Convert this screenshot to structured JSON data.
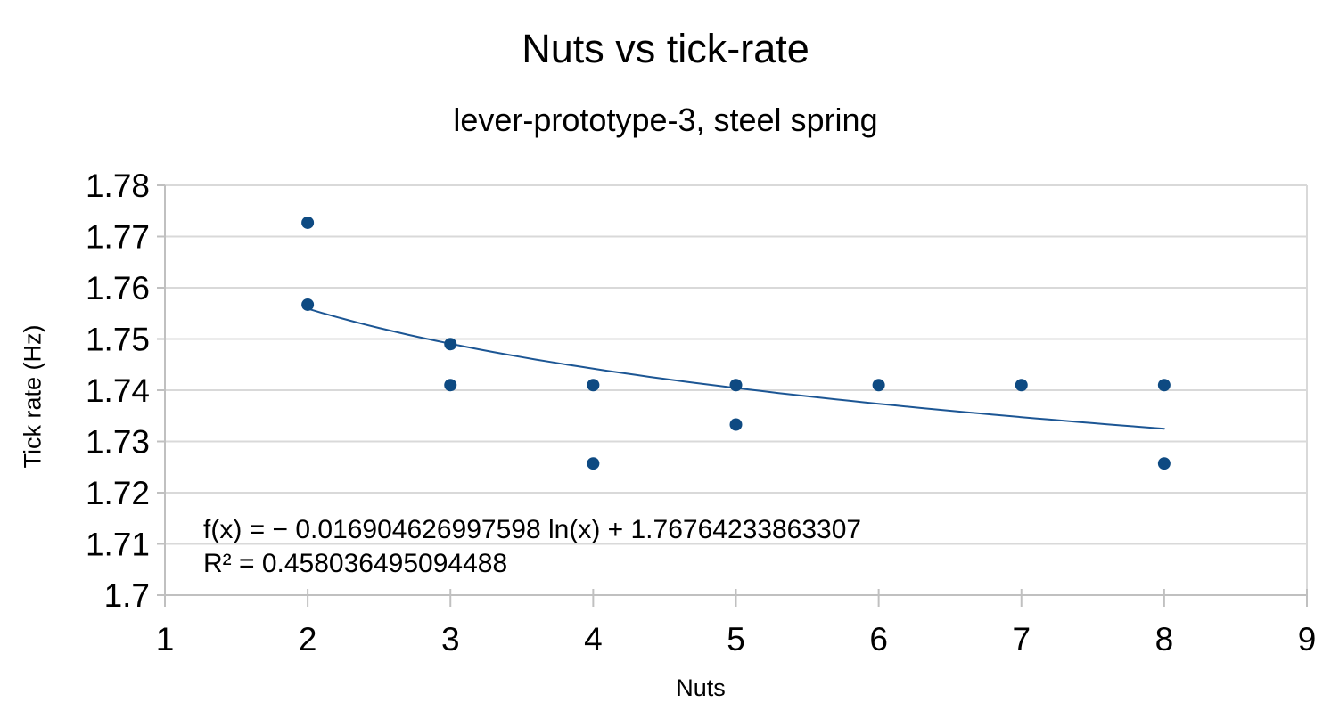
{
  "chart_data": {
    "type": "scatter",
    "title": "Nuts vs tick-rate",
    "subtitle": "lever-prototype-3, steel spring",
    "xlabel": "Nuts",
    "ylabel": "Tick rate (Hz)",
    "xlim": [
      1,
      9
    ],
    "ylim": [
      1.7,
      1.78
    ],
    "x_ticks": [
      1,
      2,
      3,
      4,
      5,
      6,
      7,
      8,
      9
    ],
    "y_ticks": [
      1.7,
      1.71,
      1.72,
      1.73,
      1.74,
      1.75,
      1.76,
      1.77,
      1.78
    ],
    "grid": "horizontal",
    "legend_position": "none",
    "points": [
      {
        "x": 2,
        "y": 1.7727
      },
      {
        "x": 2,
        "y": 1.7567
      },
      {
        "x": 3,
        "y": 1.749
      },
      {
        "x": 3,
        "y": 1.741
      },
      {
        "x": 4,
        "y": 1.741
      },
      {
        "x": 4,
        "y": 1.7257
      },
      {
        "x": 5,
        "y": 1.741
      },
      {
        "x": 5,
        "y": 1.7333
      },
      {
        "x": 6,
        "y": 1.741
      },
      {
        "x": 7,
        "y": 1.741
      },
      {
        "x": 8,
        "y": 1.741
      },
      {
        "x": 8,
        "y": 1.7257
      }
    ],
    "trendline": {
      "kind": "logarithmic",
      "slope": -0.016904626997598,
      "intercept": 1.76764233863307,
      "x_range": [
        2,
        8
      ],
      "equation_label": "f(x) = − 0.016904626997598 ln(x) + 1.76764233863307",
      "r2_label": "R² = 0.458036495094488"
    },
    "colors": {
      "point": "#0e4a82",
      "trendline": "#1c5694",
      "gridline": "#d9d9d9",
      "axis": "#c0c0c0",
      "text": "#000000",
      "background": "#ffffff"
    }
  }
}
